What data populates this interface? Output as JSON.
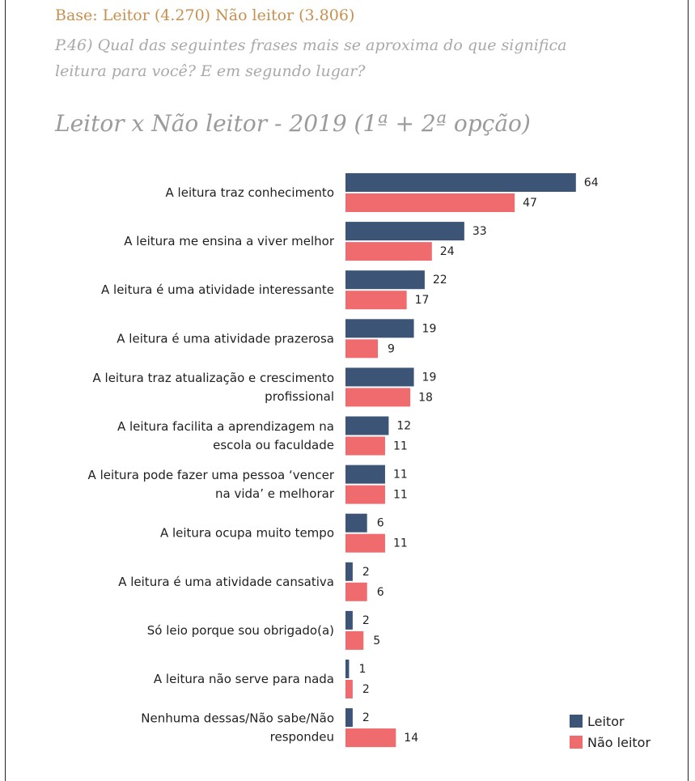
{
  "header": {
    "base": "Base: Leitor (4.270) Não leitor (3.806)",
    "question": "P.46) Qual das seguintes frases mais se aproxima do que significa leitura para você? E em segundo lugar?"
  },
  "chart_data": {
    "type": "bar",
    "orientation": "horizontal",
    "title": "Leitor x Não leitor - 2019 (1ª + 2ª opção)",
    "categories": [
      [
        "A leitura traz conhecimento"
      ],
      [
        "A leitura me ensina a viver melhor"
      ],
      [
        "A leitura é uma atividade interessante"
      ],
      [
        "A leitura é uma atividade prazerosa"
      ],
      [
        "A leitura traz atualização e crescimento",
        "profissional"
      ],
      [
        "A leitura facilita a aprendizagem na",
        "escola ou faculdade"
      ],
      [
        "A leitura pode fazer uma pessoa ‘vencer",
        "na vida’ e melhorar"
      ],
      [
        "A leitura ocupa muito tempo"
      ],
      [
        "A leitura é uma atividade cansativa"
      ],
      [
        "Só leio porque sou obrigado(a)"
      ],
      [
        "A leitura não serve para nada"
      ],
      [
        "Nenhuma dessas/Não sabe/Não",
        "respondeu"
      ]
    ],
    "series": [
      {
        "name": "Leitor",
        "color": "#3c5475",
        "values": [
          64,
          33,
          22,
          19,
          19,
          12,
          11,
          6,
          2,
          2,
          1,
          2
        ]
      },
      {
        "name": "Não leitor",
        "color": "#ef6b6e",
        "values": [
          47,
          24,
          17,
          9,
          18,
          11,
          11,
          11,
          6,
          5,
          2,
          14
        ]
      }
    ],
    "legend_position": "bottom-right",
    "grid": false
  }
}
